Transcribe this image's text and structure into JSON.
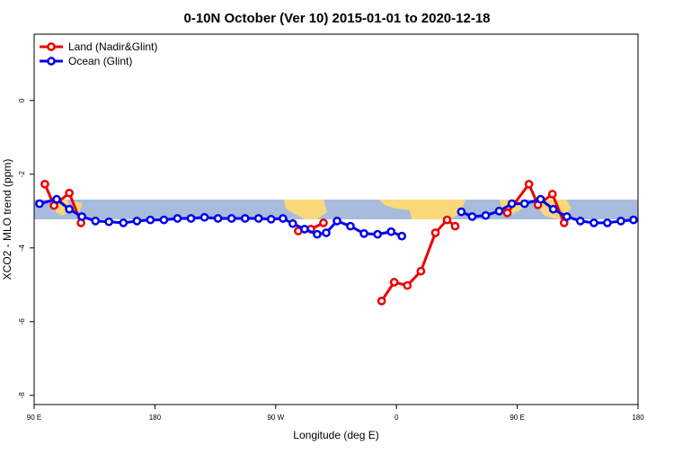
{
  "chart_data": {
    "type": "line",
    "title": "0-10N October (Ver 10)   2015-01-01 to 2020-12-18",
    "x_label": "Longitude (deg E)",
    "y_label": "XCO2 - MLO trend (ppm)",
    "xlim": [
      90,
      540
    ],
    "ylim": [
      -8.25,
      1.8
    ],
    "xticks": [
      {
        "value": 90,
        "label": "90 E"
      },
      180,
      {
        "value": 270,
        "label": "90 W"
      },
      {
        "value": 360,
        "label": "0"
      },
      {
        "value": 450,
        "label": "90 E"
      },
      180
    ],
    "yticks": [
      0,
      -2,
      -4,
      -6,
      -8
    ],
    "legend": "top-left",
    "series": [
      {
        "name": "Land (Nadir&Glint)",
        "color": "#ee0000",
        "x": [
          98,
          104.8,
          116.2,
          124.9,
          null,
          286.8,
          296.2,
          305.6,
          null,
          348.9,
          358.3,
          368.1,
          378.2,
          389,
          397.7,
          403.7,
          null,
          442.6,
          458.7,
          465.4,
          476.2,
          484.9
        ],
        "values": [
          -2.27,
          -2.85,
          -2.51,
          -3.32,
          null,
          -3.54,
          -3.49,
          -3.32,
          null,
          -5.44,
          -4.93,
          -5.02,
          -4.63,
          -3.59,
          -3.24,
          -3.41,
          null,
          -3.05,
          -2.27,
          -2.83,
          -2.54,
          -3.32
        ]
      },
      {
        "name": "Ocean (Glint)",
        "color": "#0000ee",
        "x": [
          94,
          106.8,
          116.2,
          125.6,
          135.7,
          145.7,
          156.5,
          166.6,
          176.6,
          186.7,
          196.8,
          206.9,
          216.9,
          227,
          237.1,
          247.2,
          257.2,
          266.6,
          275.4,
          282.7,
          291.5,
          300.9,
          307.6,
          315.7,
          325.7,
          335.8,
          345.9,
          356,
          364,
          null,
          408.3,
          416.4,
          426.5,
          436.5,
          446,
          455.4,
          467.4,
          476.8,
          486.9,
          497,
          507.1,
          517.1,
          527.2,
          536.6
        ],
        "values": [
          -2.8,
          -2.68,
          -2.95,
          -3.15,
          -3.27,
          -3.29,
          -3.32,
          -3.27,
          -3.24,
          -3.24,
          -3.2,
          -3.2,
          -3.17,
          -3.2,
          -3.2,
          -3.2,
          -3.2,
          -3.22,
          -3.2,
          -3.34,
          -3.49,
          -3.63,
          -3.59,
          -3.27,
          -3.41,
          -3.61,
          -3.63,
          -3.56,
          -3.68,
          null,
          -3.02,
          -3.15,
          -3.12,
          -3.0,
          -2.8,
          -2.8,
          -2.68,
          -2.95,
          -3.15,
          -3.27,
          -3.32,
          -3.32,
          -3.27,
          -3.24
        ]
      }
    ]
  }
}
